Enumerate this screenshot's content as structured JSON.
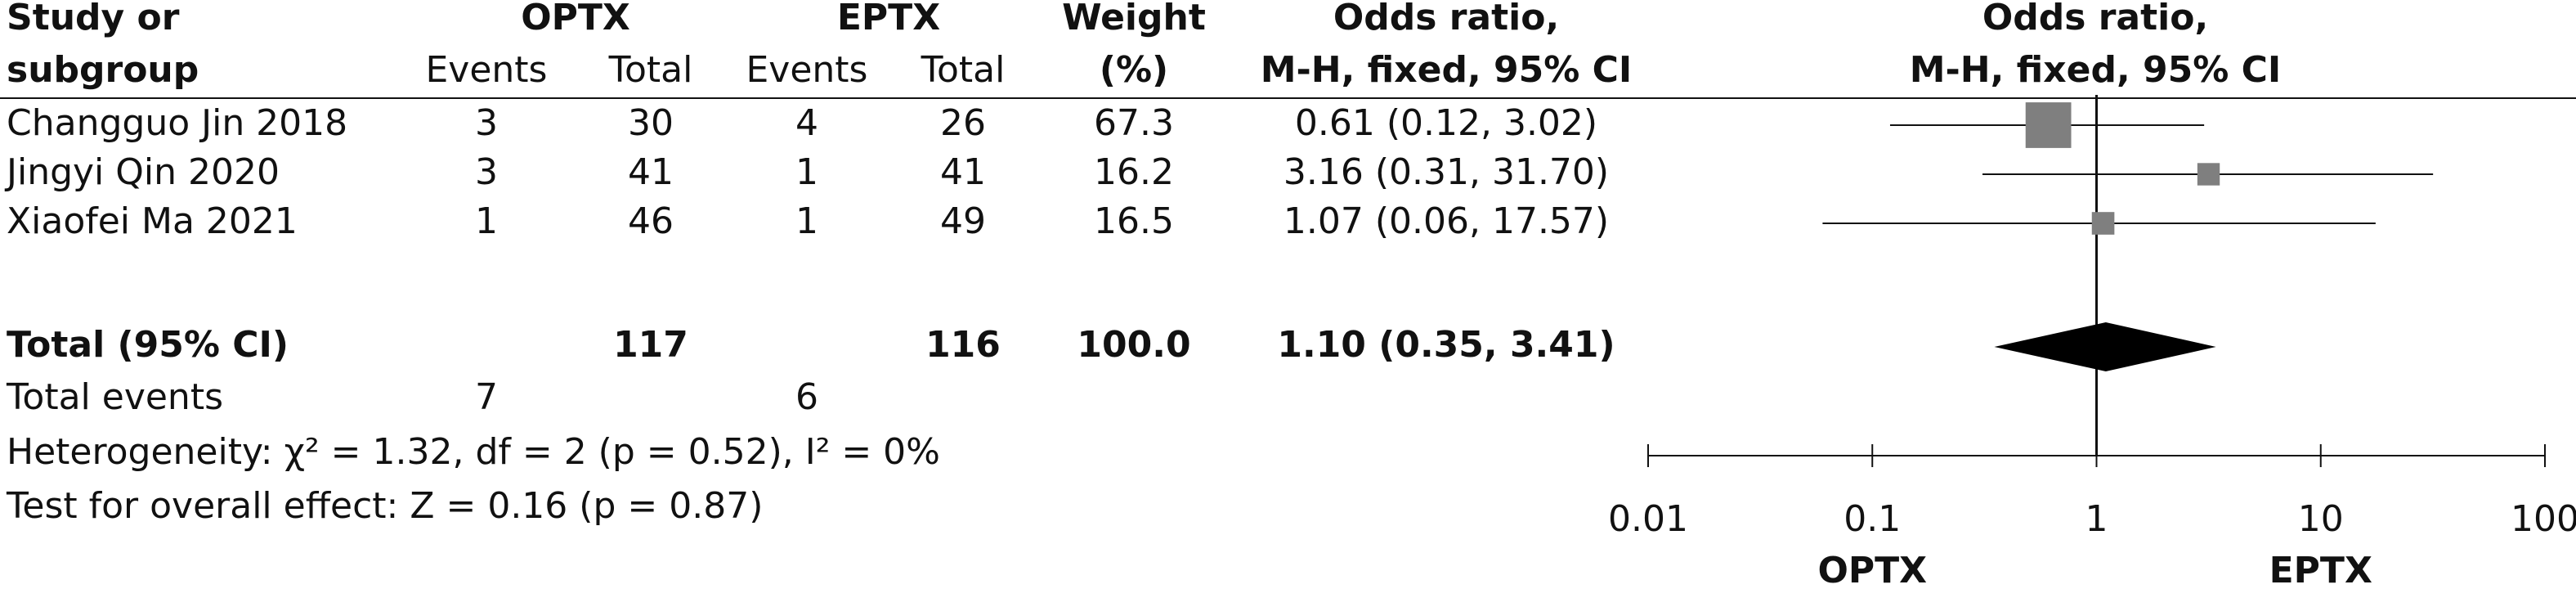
{
  "chart_data": {
    "type": "forest",
    "headers": {
      "study": [
        "Study or",
        "subgroup"
      ],
      "groups": [
        "OPTX",
        "EPTX"
      ],
      "subcolumns": [
        "Events",
        "Total",
        "Events",
        "Total"
      ],
      "weight": [
        "Weight",
        "(%)"
      ],
      "effect": [
        "Odds ratio,",
        "M-H, fixed, 95% CI"
      ],
      "plot": [
        "Odds ratio,",
        "M-H, fixed, 95% CI"
      ]
    },
    "studies": {
      "names": [
        "Changguo Jin 2018",
        "Jingyi Qin 2020",
        "Xiaofei Ma 2021"
      ],
      "optx_events": [
        3,
        3,
        1
      ],
      "optx_total": [
        30,
        41,
        46
      ],
      "eptx_events": [
        4,
        1,
        1
      ],
      "eptx_total": [
        26,
        41,
        49
      ],
      "weights": [
        67.3,
        16.2,
        16.5
      ],
      "or": [
        0.61,
        3.16,
        1.07
      ],
      "ci_low": [
        0.12,
        0.31,
        0.06
      ],
      "ci_high": [
        3.02,
        31.7,
        17.57
      ],
      "ci_labels": [
        "0.61 (0.12, 3.02)",
        "3.16 (0.31, 31.70)",
        "1.07 (0.06, 17.57)"
      ]
    },
    "total": {
      "label": "Total (95% CI)",
      "optx_total": 117,
      "eptx_total": 116,
      "weight": "100.0",
      "or": 1.1,
      "ci_low": 0.35,
      "ci_high": 3.41,
      "ci_label": "1.10 (0.35, 3.41)"
    },
    "total_events": {
      "label": "Total events",
      "optx": 7,
      "eptx": 6
    },
    "heterogeneity": "Heterogeneity: χ² = 1.32, df = 2 (p = 0.52), I² = 0%",
    "overall_effect": "Test for overall effect: Z = 0.16 (p = 0.87)",
    "xlim": [
      0.01,
      100
    ],
    "xticks": [
      0.01,
      0.1,
      1,
      10,
      100
    ],
    "log_x": true,
    "x_labels": [
      "OPTX",
      "EPTX"
    ],
    "color": "#7f7f7f"
  }
}
